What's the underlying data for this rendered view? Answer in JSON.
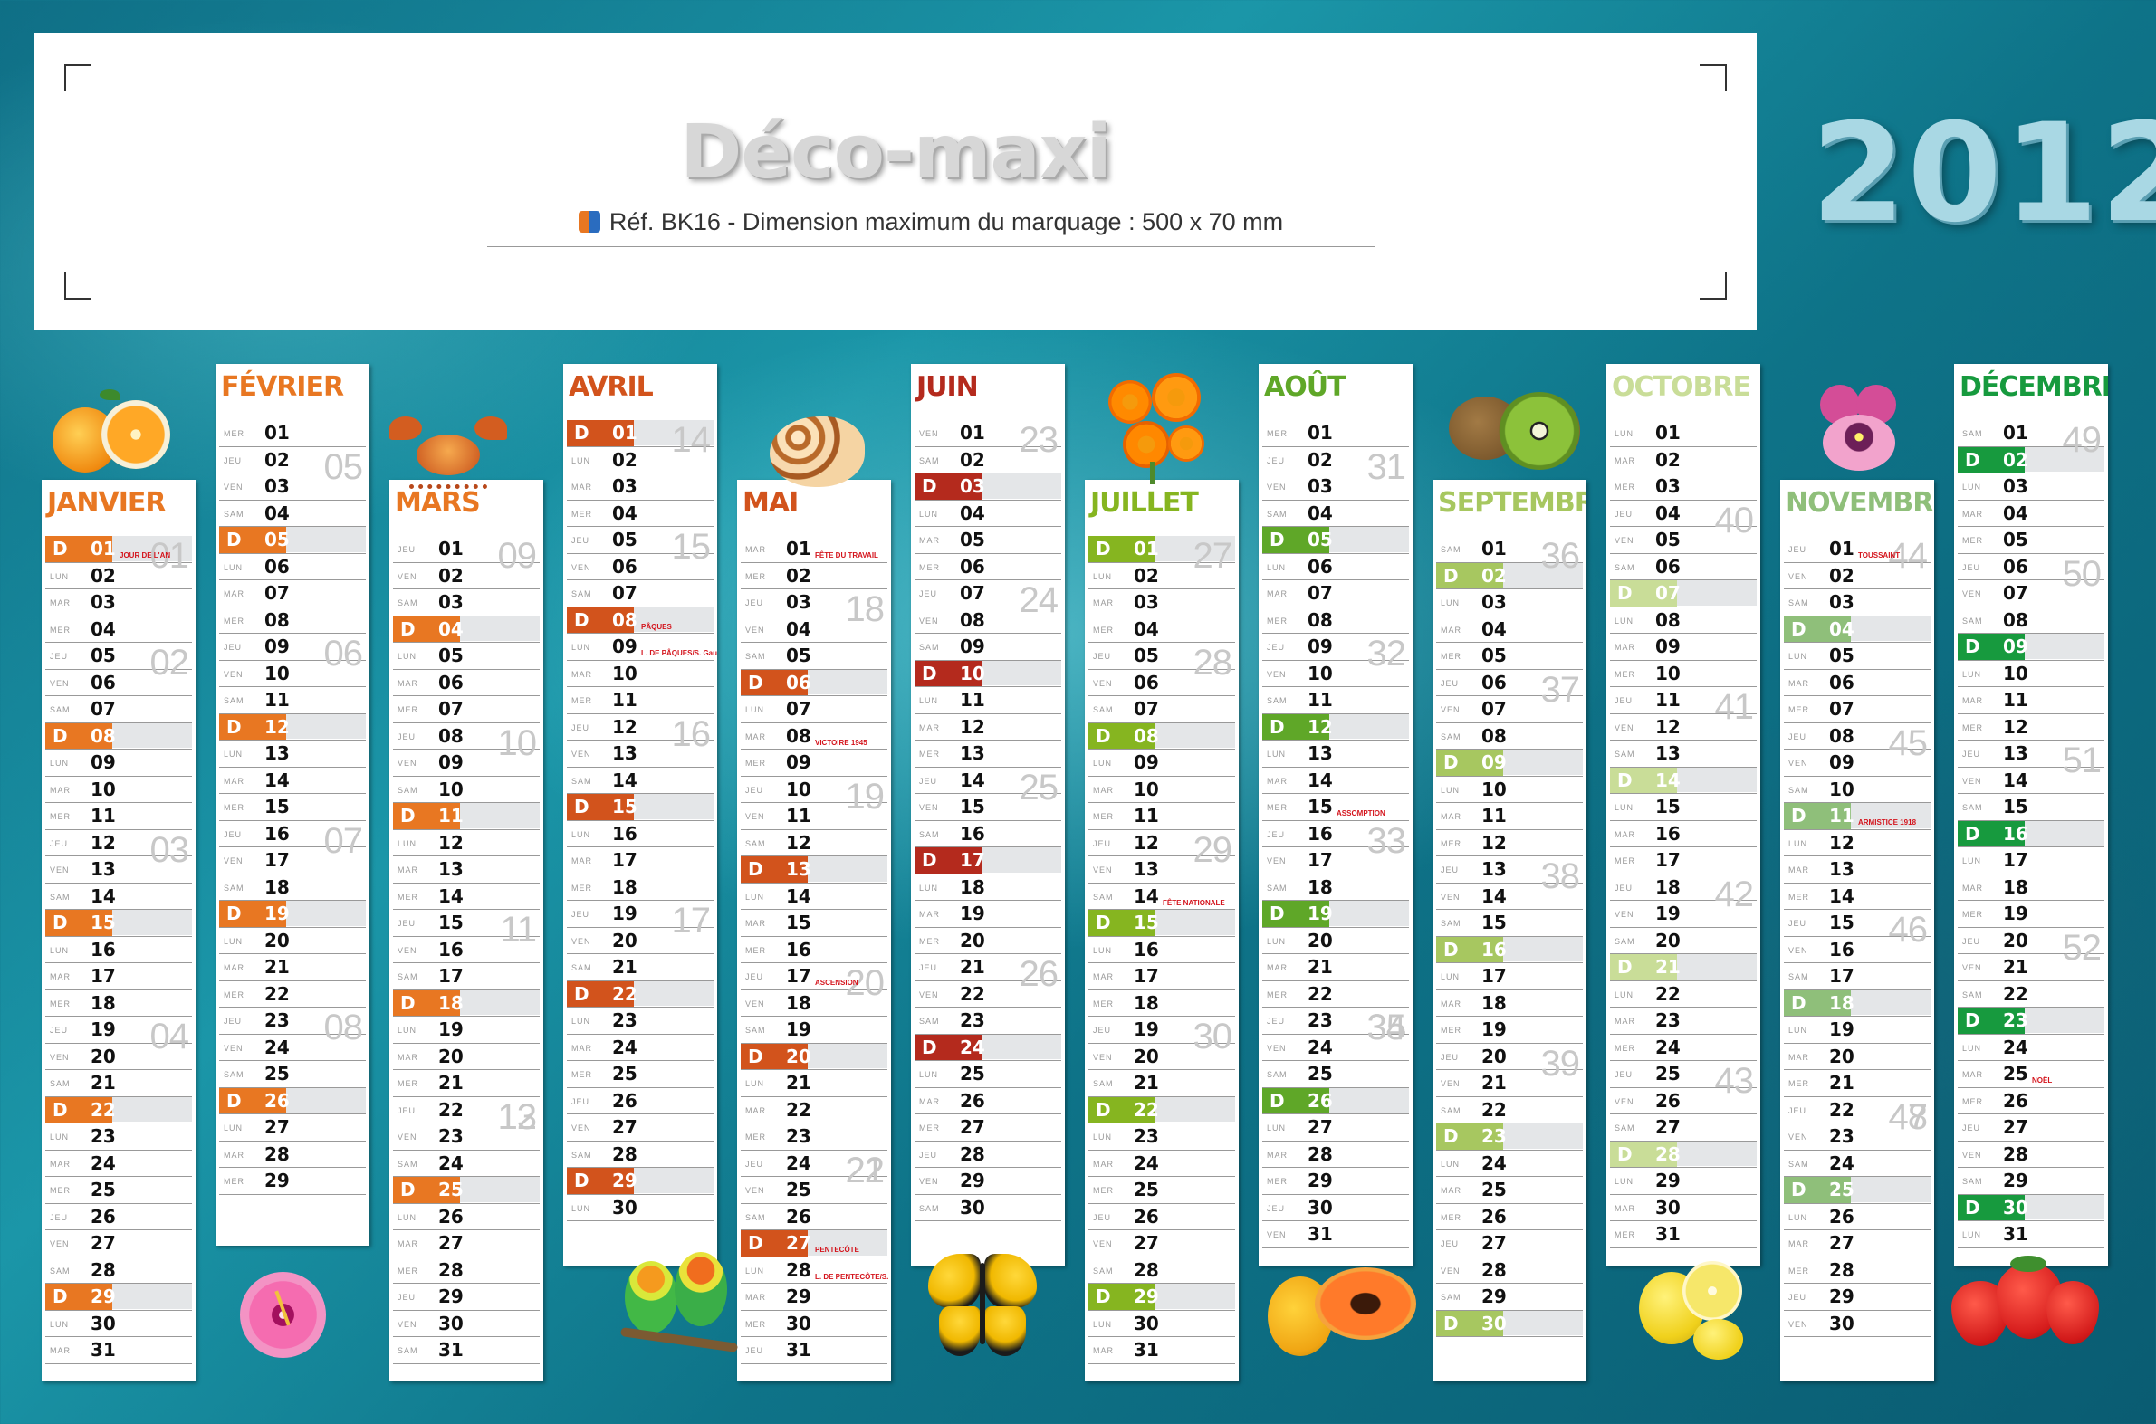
{
  "header": {
    "title": "Déco-maxi",
    "reference": "Réf. BK16 - Dimension maximum du marquage : 500 x 70 mm",
    "year": "2012"
  },
  "colors": {
    "janvier": "#e87722",
    "fevrier": "#e87722",
    "mars": "#e87722",
    "avril": "#d2531c",
    "mai": "#d2531c",
    "juin": "#b42a1d",
    "juillet": "#86b520",
    "aout": "#5fa728",
    "septembre": "#a7c760",
    "octobre": "#c9dd98",
    "novembre": "#8fbf7a",
    "decembre": "#179a3e"
  },
  "months": [
    {
      "key": "janvier",
      "name": "JANVIER",
      "sundays": [
        1,
        8,
        15,
        22,
        29
      ],
      "holidays": {
        "1": "JOUR DE L'AN"
      },
      "weeks": [
        "01",
        "02",
        "03",
        "04"
      ]
    },
    {
      "key": "fevrier",
      "name": "FÉVRIER",
      "sundays": [
        5,
        12,
        19,
        26
      ],
      "holidays": {},
      "weeks": [
        "05",
        "06",
        "07",
        "08"
      ]
    },
    {
      "key": "mars",
      "name": "MARS",
      "sundays": [
        4,
        11,
        18,
        25
      ],
      "holidays": {},
      "weeks": [
        "09",
        "10",
        "11",
        "12",
        "13"
      ]
    },
    {
      "key": "avril",
      "name": "AVRIL",
      "sundays": [
        1,
        8,
        15,
        22,
        29
      ],
      "holidays": {
        "8": "PÂQUES",
        "9": "L. DE PÂQUES/S. Gautier"
      },
      "weeks": [
        "14",
        "15",
        "16",
        "17"
      ]
    },
    {
      "key": "mai",
      "name": "MAI",
      "sundays": [
        6,
        13,
        20,
        27
      ],
      "holidays": {
        "1": "FÊTE DU TRAVAIL",
        "8": "VICTOIRE 1945",
        "17": "ASCENSION",
        "27": "PENTECÔTE",
        "28": "L. DE PENTECÔTE/S. Germain"
      },
      "weeks": [
        "18",
        "19",
        "20",
        "21",
        "22"
      ]
    },
    {
      "key": "juin",
      "name": "JUIN",
      "sundays": [
        3,
        10,
        17,
        24
      ],
      "holidays": {},
      "weeks": [
        "23",
        "24",
        "25",
        "26"
      ]
    },
    {
      "key": "juillet",
      "name": "JUILLET",
      "sundays": [
        1,
        8,
        15,
        22,
        29
      ],
      "holidays": {
        "14": "FÊTE NATIONALE"
      },
      "weeks": [
        "27",
        "28",
        "29",
        "30"
      ]
    },
    {
      "key": "aout",
      "name": "AOÛT",
      "sundays": [
        5,
        12,
        19,
        26
      ],
      "holidays": {
        "15": "ASSOMPTION"
      },
      "weeks": [
        "31",
        "32",
        "33",
        "34",
        "35"
      ]
    },
    {
      "key": "septembre",
      "name": "SEPTEMBRE",
      "sundays": [
        2,
        9,
        16,
        23,
        30
      ],
      "holidays": {},
      "weeks": [
        "36",
        "37",
        "38",
        "39"
      ]
    },
    {
      "key": "octobre",
      "name": "OCTOBRE",
      "sundays": [
        7,
        14,
        21,
        28
      ],
      "holidays": {},
      "weeks": [
        "40",
        "41",
        "42",
        "43"
      ]
    },
    {
      "key": "novembre",
      "name": "NOVEMBRE",
      "sundays": [
        4,
        11,
        18,
        25
      ],
      "holidays": {
        "1": "TOUSSAINT",
        "11": "ARMISTICE 1918"
      },
      "weeks": [
        "44",
        "45",
        "46",
        "47",
        "48"
      ]
    },
    {
      "key": "decembre",
      "name": "DÉCEMBRE",
      "sundays": [
        2,
        9,
        16,
        23,
        30
      ],
      "holidays": {
        "25": "NOËL"
      },
      "weeks": [
        "49",
        "50",
        "51",
        "52"
      ]
    }
  ],
  "weekday_labels": [
    "LUN",
    "MAR",
    "MER",
    "JEU",
    "VEN",
    "SAM"
  ],
  "sunday_label": "D",
  "decorations": [
    "orange-icon",
    "crab-icon",
    "shell-icon",
    "marigold-icon",
    "kiwi-icon",
    "pansy-icon",
    "hibiscus-icon",
    "lovebirds-icon",
    "butterfly-icon",
    "papaya-icon",
    "lemon-icon",
    "strawberry-icon"
  ]
}
